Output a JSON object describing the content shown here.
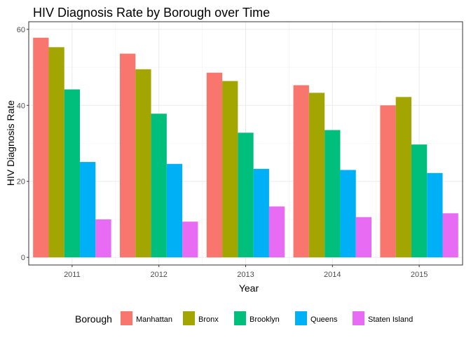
{
  "chart_data": {
    "type": "bar",
    "title": "HIV Diagnosis Rate by Borough over Time",
    "xlabel": "Year",
    "ylabel": "HIV Diagnosis Rate",
    "categories": [
      "2011",
      "2012",
      "2013",
      "2014",
      "2015"
    ],
    "ylim": [
      -2,
      62
    ],
    "yticks": [
      0,
      20,
      40,
      60
    ],
    "grid": true,
    "legend": {
      "title": "Borough",
      "position": "bottom"
    },
    "series": [
      {
        "name": "Manhattan",
        "color": "#F8766D",
        "values": [
          57.8,
          53.6,
          48.6,
          45.3,
          40.0
        ]
      },
      {
        "name": "Bronx",
        "color": "#A3A500",
        "values": [
          55.3,
          49.5,
          46.4,
          43.3,
          42.2
        ]
      },
      {
        "name": "Brooklyn",
        "color": "#00BF7D",
        "values": [
          44.2,
          37.8,
          32.8,
          33.5,
          29.7
        ]
      },
      {
        "name": "Queens",
        "color": "#00B0F6",
        "values": [
          25.1,
          24.6,
          23.3,
          23.0,
          22.2
        ]
      },
      {
        "name": "Staten Island",
        "color": "#E76BF3",
        "values": [
          10.0,
          9.4,
          13.4,
          10.6,
          11.6
        ]
      }
    ]
  }
}
